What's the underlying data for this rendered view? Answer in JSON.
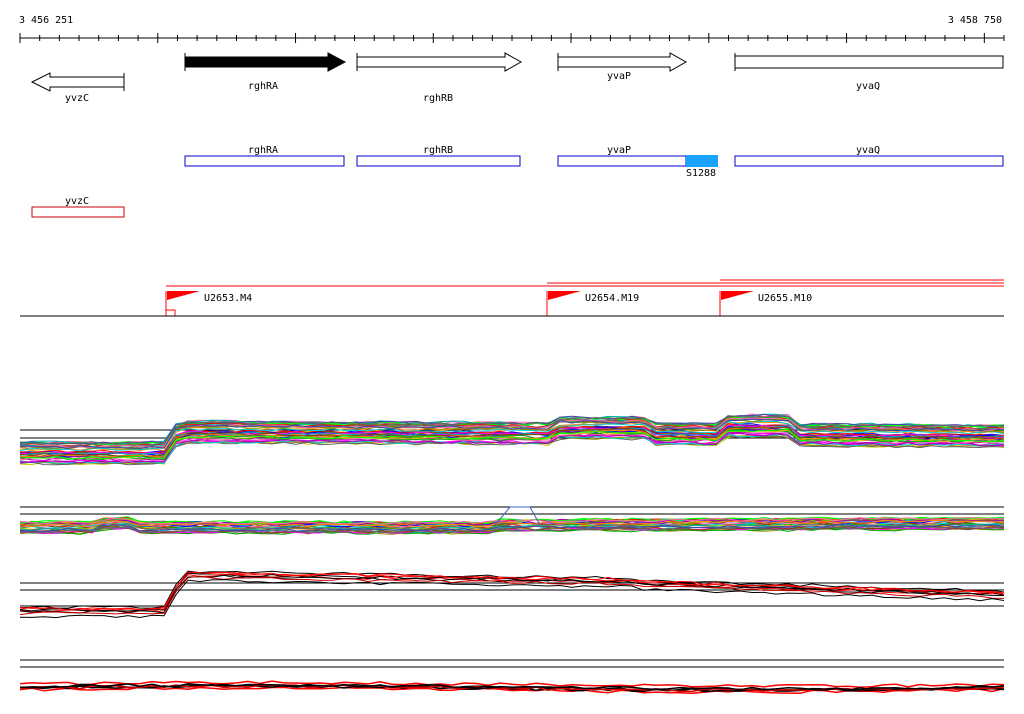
{
  "ruler": {
    "start_label": "3 456 251",
    "end_label": "3 458 750"
  },
  "genes": [
    {
      "name": "yvzC",
      "strand": "-",
      "highlighted": false
    },
    {
      "name": "rghRA",
      "strand": "+",
      "highlighted": true
    },
    {
      "name": "rghRB",
      "strand": "+",
      "highlighted": false
    },
    {
      "name": "yvaP",
      "strand": "+",
      "highlighted": false
    },
    {
      "name": "yvaQ",
      "strand": "+",
      "highlighted": false
    }
  ],
  "segments_blue": [
    {
      "name": "rghRA"
    },
    {
      "name": "rghRB"
    },
    {
      "name": "yvaP"
    },
    {
      "name": "yvaQ"
    }
  ],
  "segments_red": [
    {
      "name": "yvzC"
    }
  ],
  "feature_marker": {
    "name": "S1288",
    "color": "#1aa3ff"
  },
  "transcription_units": [
    {
      "name": "U2653.M4"
    },
    {
      "name": "U2654.M19"
    },
    {
      "name": "U2655.M10"
    }
  ],
  "colors": {
    "gene_highlight": "#000000",
    "segment_blue": "#0000cc",
    "segment_red": "#cc0000",
    "tu_red": "#ff0000"
  },
  "profile_tracks": [
    {
      "name": "profiles-multicolor-1"
    },
    {
      "name": "profiles-multicolor-2"
    },
    {
      "name": "profiles-red-black-1"
    },
    {
      "name": "profiles-red-black-2"
    }
  ]
}
